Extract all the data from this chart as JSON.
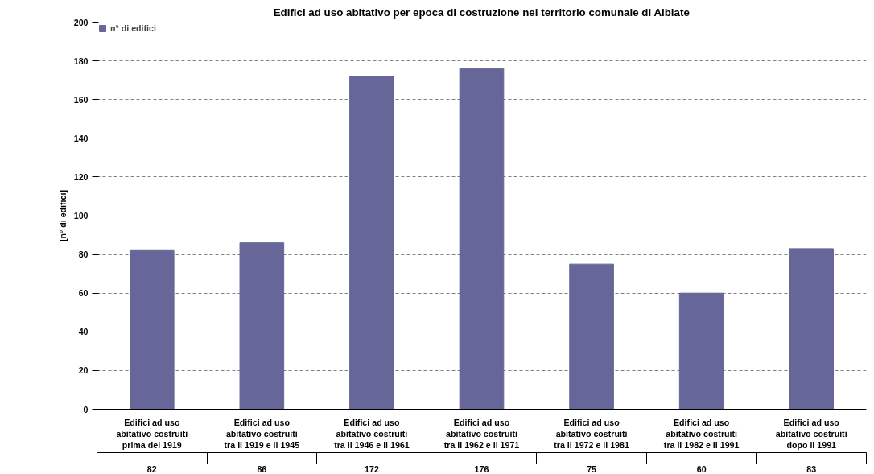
{
  "chart_data": {
    "type": "bar",
    "title": "Edifici ad uso abitativo per epoca di costruzione nel territorio comunale di Albiate",
    "ylabel": "[n° di edifici]",
    "categories": [
      "Edifici ad uso abitativo costruiti prima del 1919",
      "Edifici ad uso abitativo costruiti tra il 1919 e il 1945",
      "Edifici ad uso abitativo costruiti tra il 1946 e il 1961",
      "Edifici ad uso abitativo costruiti tra il 1962 e il 1971",
      "Edifici ad uso abitativo costruiti tra il 1972 e il 1981",
      "Edifici ad uso abitativo costruiti tra il 1982 e il 1991",
      "Edifici ad uso abitativo costruiti dopo il 1991"
    ],
    "series": [
      {
        "name": "n° di edifici",
        "color": "#666699",
        "values": [
          82,
          86,
          172,
          176,
          75,
          60,
          83
        ]
      }
    ],
    "ylim": [
      0,
      200
    ],
    "yticks": [
      0,
      20,
      40,
      60,
      80,
      100,
      120,
      140,
      160,
      180,
      200
    ],
    "grid": "y",
    "legend": "top left",
    "data_labels": true
  }
}
